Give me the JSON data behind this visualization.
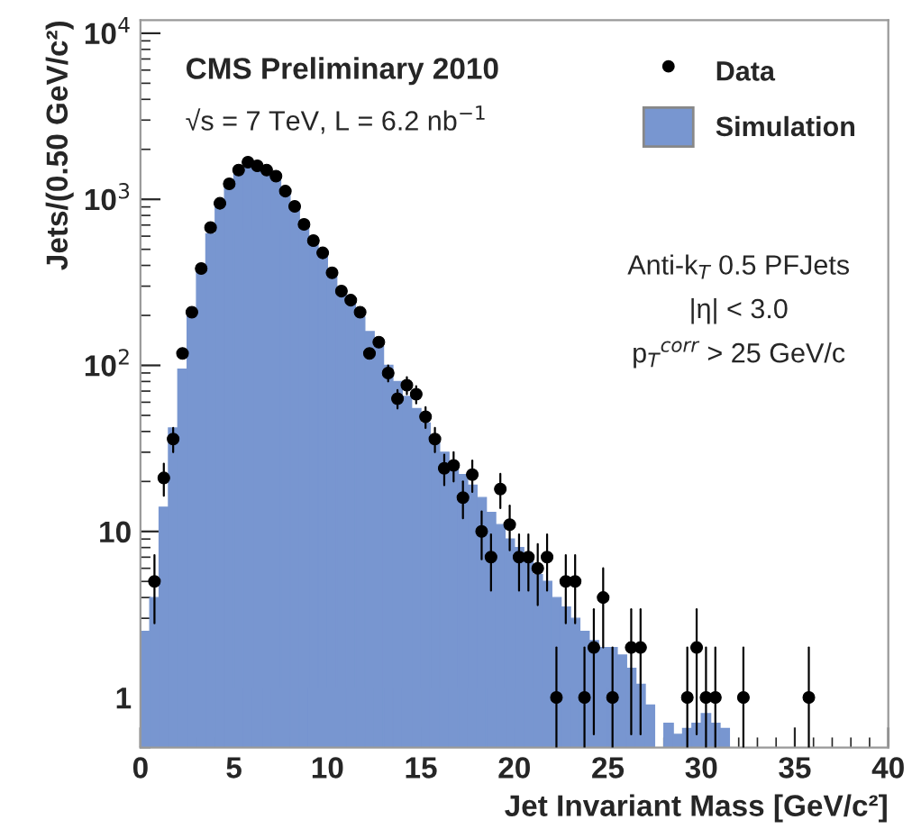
{
  "chart_data": {
    "type": "histogram",
    "title": "CMS Preliminary 2010",
    "xlabel": "Jet Invariant Mass [GeV/c²]",
    "ylabel": "Jets/(0.50 GeV/c²)",
    "annotations": [
      "√s = 7 TeV, L = 6.2 nb$^{−1}$",
      "Anti-k$_{T}$ 0.5 PFJets",
      "|η| < 3.0",
      "p$_{T}$$^{corr}$ > 25 GeV/c"
    ],
    "bins": [
      0,
      0.5,
      1,
      1.5,
      2,
      2.5,
      3,
      3.5,
      4,
      4.5,
      5,
      5.5,
      6,
      6.5,
      7,
      7.5,
      8,
      8.5,
      9,
      9.5,
      10,
      10.5,
      11,
      11.5,
      12,
      12.5,
      13,
      13.5,
      14,
      14.5,
      15,
      15.5,
      16,
      16.5,
      17,
      17.5,
      18,
      18.5,
      19,
      19.5,
      20,
      20.5,
      21,
      21.5,
      22,
      22.5,
      23,
      23.5,
      24,
      24.5,
      25,
      25.5,
      26,
      26.5,
      27,
      27.5,
      28,
      28.5,
      29,
      29.5,
      30,
      30.5,
      31,
      31.5,
      32
    ],
    "series": [
      {
        "name": "Simulation",
        "color": "#7896d0",
        "values": [
          2.5,
          4,
          14,
          42,
          95,
          200,
          380,
          620,
          900,
          1200,
          1450,
          1550,
          1520,
          1450,
          1300,
          1100,
          900,
          720,
          570,
          460,
          370,
          290,
          240,
          195,
          160,
          130,
          100,
          80,
          65,
          55,
          45,
          37,
          30,
          25,
          22,
          19,
          16,
          13,
          11,
          9,
          8,
          7,
          5.5,
          5,
          4,
          3.5,
          3,
          2.5,
          2.2,
          2,
          2,
          1.8,
          1.5,
          1.2,
          0.9,
          null,
          0.7,
          0.6,
          0.65,
          0.7,
          0.8,
          0.7,
          0.65,
          null
        ]
      },
      {
        "type": "scatter",
        "name": "Data",
        "color": "#000000",
        "marker": "circle",
        "x": [
          0.75,
          1.25,
          1.75,
          2.25,
          2.75,
          3.25,
          3.75,
          4.25,
          4.75,
          5.25,
          5.75,
          6.25,
          6.75,
          7.25,
          7.75,
          8.25,
          8.75,
          9.25,
          9.75,
          10.25,
          10.75,
          11.25,
          11.75,
          12.25,
          12.75,
          13.25,
          13.75,
          14.25,
          14.75,
          15.25,
          15.75,
          16.25,
          16.75,
          17.25,
          17.75,
          18.25,
          18.75,
          19.25,
          19.75,
          20.25,
          20.75,
          21.25,
          21.75,
          22.25,
          22.75,
          23.25,
          23.75,
          24.25,
          24.75,
          25.25,
          26.25,
          26.75,
          29.25,
          29.75,
          30.25,
          30.75,
          32.25,
          35.75
        ],
        "values": [
          5,
          21,
          36,
          118,
          209,
          383,
          676,
          946,
          1240,
          1500,
          1675,
          1590,
          1500,
          1380,
          1120,
          908,
          707,
          564,
          476,
          361,
          280,
          247,
          209,
          118,
          138,
          90,
          63,
          76,
          67,
          49,
          36,
          24,
          25,
          16,
          22,
          10,
          7,
          18,
          11,
          7,
          7,
          6,
          7,
          1,
          5,
          5,
          1,
          2,
          4,
          1,
          2,
          2,
          1,
          2,
          1,
          1,
          1,
          1
        ],
        "errors": [
          [
            2.8,
            7.2
          ],
          [
            16.4,
            25.6
          ],
          [
            30,
            42
          ],
          null,
          null,
          null,
          null,
          null,
          null,
          null,
          null,
          null,
          null,
          null,
          null,
          null,
          null,
          null,
          null,
          null,
          null,
          null,
          null,
          null,
          null,
          [
            80,
            100
          ],
          [
            55,
            71
          ],
          [
            67,
            85
          ],
          [
            59,
            75
          ],
          [
            42,
            56
          ],
          [
            30,
            42
          ],
          [
            19,
            29
          ],
          [
            20,
            30
          ],
          [
            12,
            20
          ],
          [
            17.3,
            26.7
          ],
          [
            6.8,
            13.2
          ],
          [
            4.4,
            9.6
          ],
          [
            13.8,
            22.2
          ],
          [
            7.7,
            14.3
          ],
          [
            4.4,
            9.6
          ],
          [
            4.4,
            9.6
          ],
          [
            3.6,
            8.4
          ],
          [
            4.4,
            9.6
          ],
          [
            0.5,
            2
          ],
          [
            2.8,
            7.2
          ],
          [
            2.8,
            7.2
          ],
          [
            0.5,
            2
          ],
          [
            0.6,
            3.4
          ],
          [
            2,
            6
          ],
          [
            0.5,
            2
          ],
          [
            0.6,
            3.4
          ],
          [
            0.6,
            3.4
          ],
          [
            0.5,
            2
          ],
          [
            0.6,
            3.4
          ],
          [
            0.5,
            2
          ],
          [
            0.5,
            2
          ],
          [
            0.5,
            2
          ],
          [
            0.5,
            2
          ]
        ]
      }
    ],
    "log": "y",
    "xlim": [
      0,
      40
    ],
    "xticks": [
      0,
      5,
      10,
      15,
      20,
      25,
      30,
      35,
      40
    ],
    "ylim": [
      0.5,
      12000
    ],
    "yticks": [
      1,
      10,
      {
        "value": 100,
        "label": "10$^{2}$"
      },
      {
        "value": 1000,
        "label": "10$^{3}$"
      },
      {
        "value": 10000,
        "label": "10$^{4}$"
      }
    ],
    "grid": false,
    "legend": "top right"
  }
}
